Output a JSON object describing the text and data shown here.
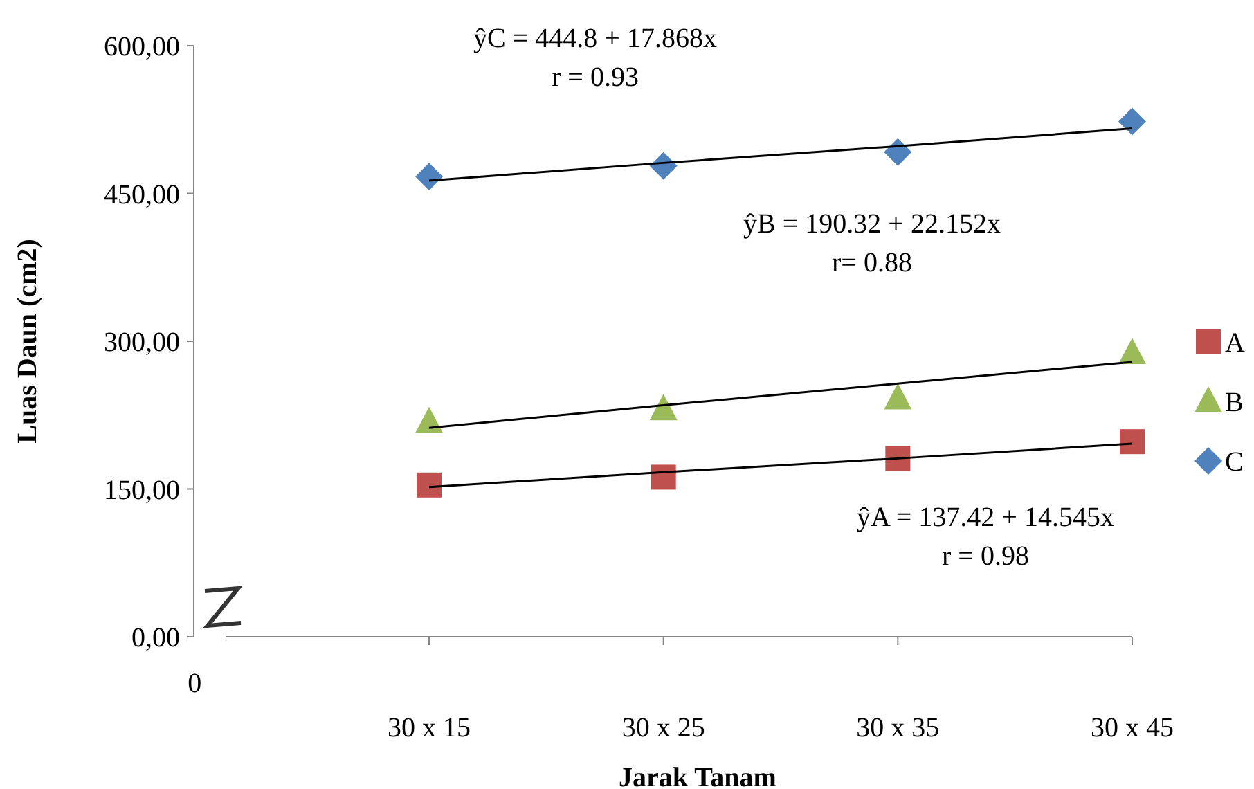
{
  "chart_data": {
    "type": "scatter",
    "xlabel": "Jarak Tanam",
    "ylabel": "Luas Daun (cm2)",
    "categories": [
      "0",
      "30 x 15",
      "30 x 25",
      "30 x 35",
      "30 x 45"
    ],
    "ylim": [
      0,
      600
    ],
    "yticks": [
      {
        "value": 0,
        "label": "0,00"
      },
      {
        "value": 150,
        "label": "150,00"
      },
      {
        "value": 300,
        "label": "300,00"
      },
      {
        "value": 450,
        "label": "450,00"
      },
      {
        "value": 600,
        "label": "600,00"
      }
    ],
    "series": [
      {
        "name": "A",
        "color": "#c0504d",
        "marker": "square",
        "values": [
          null,
          154,
          162,
          181,
          198
        ]
      },
      {
        "name": "B",
        "color": "#9bbb59",
        "marker": "triangle",
        "values": [
          null,
          218,
          231,
          242,
          288
        ]
      },
      {
        "name": "C",
        "color": "#4f81bd",
        "marker": "diamond",
        "values": [
          null,
          467,
          478,
          492,
          523
        ]
      },
      {
        "type": "line",
        "color": "#000000",
        "values": [
          null,
          152,
          167,
          181,
          196
        ]
      },
      {
        "type": "line",
        "color": "#000000",
        "values": [
          null,
          212,
          235,
          257,
          279
        ]
      },
      {
        "type": "line",
        "color": "#000000",
        "values": [
          null,
          463,
          481,
          498,
          516
        ]
      }
    ],
    "annotations": [
      "ŷC = 444.8 + 17.868x\nr = 0.93",
      "ŷB = 190.32 + 22.152x\nr= 0.88",
      "ŷA = 137.42 + 14.545x\nr = 0.98"
    ],
    "legend": "right",
    "grid": false
  }
}
